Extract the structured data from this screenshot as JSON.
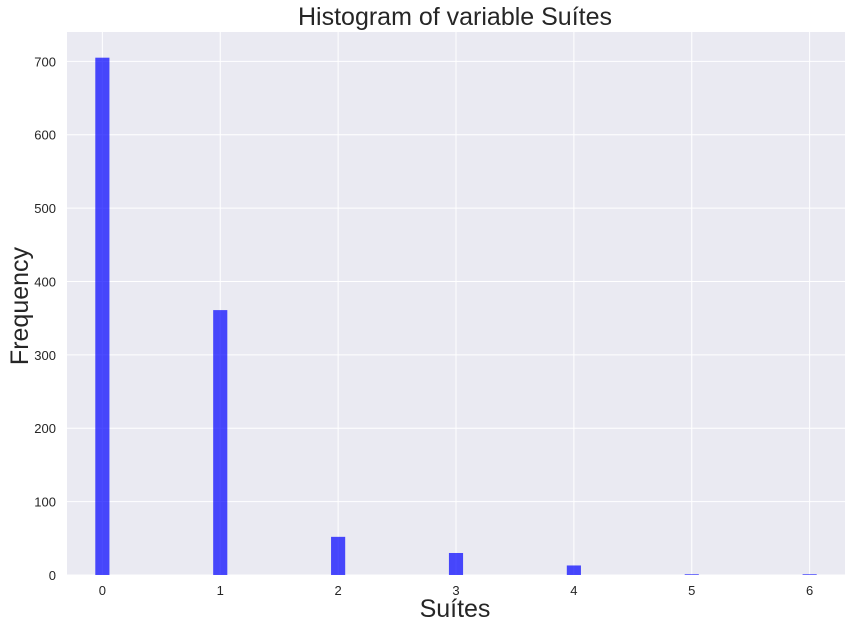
{
  "chart_data": {
    "type": "bar",
    "title": "Histogram of variable Suítes",
    "xlabel": "Suítes",
    "ylabel": "Frequency",
    "xlim": [
      -0.3,
      6.3
    ],
    "ylim": [
      0,
      740
    ],
    "xticks": [
      0,
      1,
      2,
      3,
      4,
      5,
      6
    ],
    "yticks": [
      0,
      100,
      200,
      300,
      400,
      500,
      600,
      700
    ],
    "grid": true,
    "bin_width": 0.12,
    "bars": [
      {
        "x": 0,
        "value": 705
      },
      {
        "x": 1,
        "value": 361
      },
      {
        "x": 2,
        "value": 52
      },
      {
        "x": 3,
        "value": 30
      },
      {
        "x": 4,
        "value": 13
      },
      {
        "x": 5,
        "value": 1
      },
      {
        "x": 6,
        "value": 1
      }
    ],
    "bar_color": "#0000ff",
    "bar_opacity": 0.7,
    "background_color": "#eaeaf2",
    "grid_color": "#ffffff"
  }
}
